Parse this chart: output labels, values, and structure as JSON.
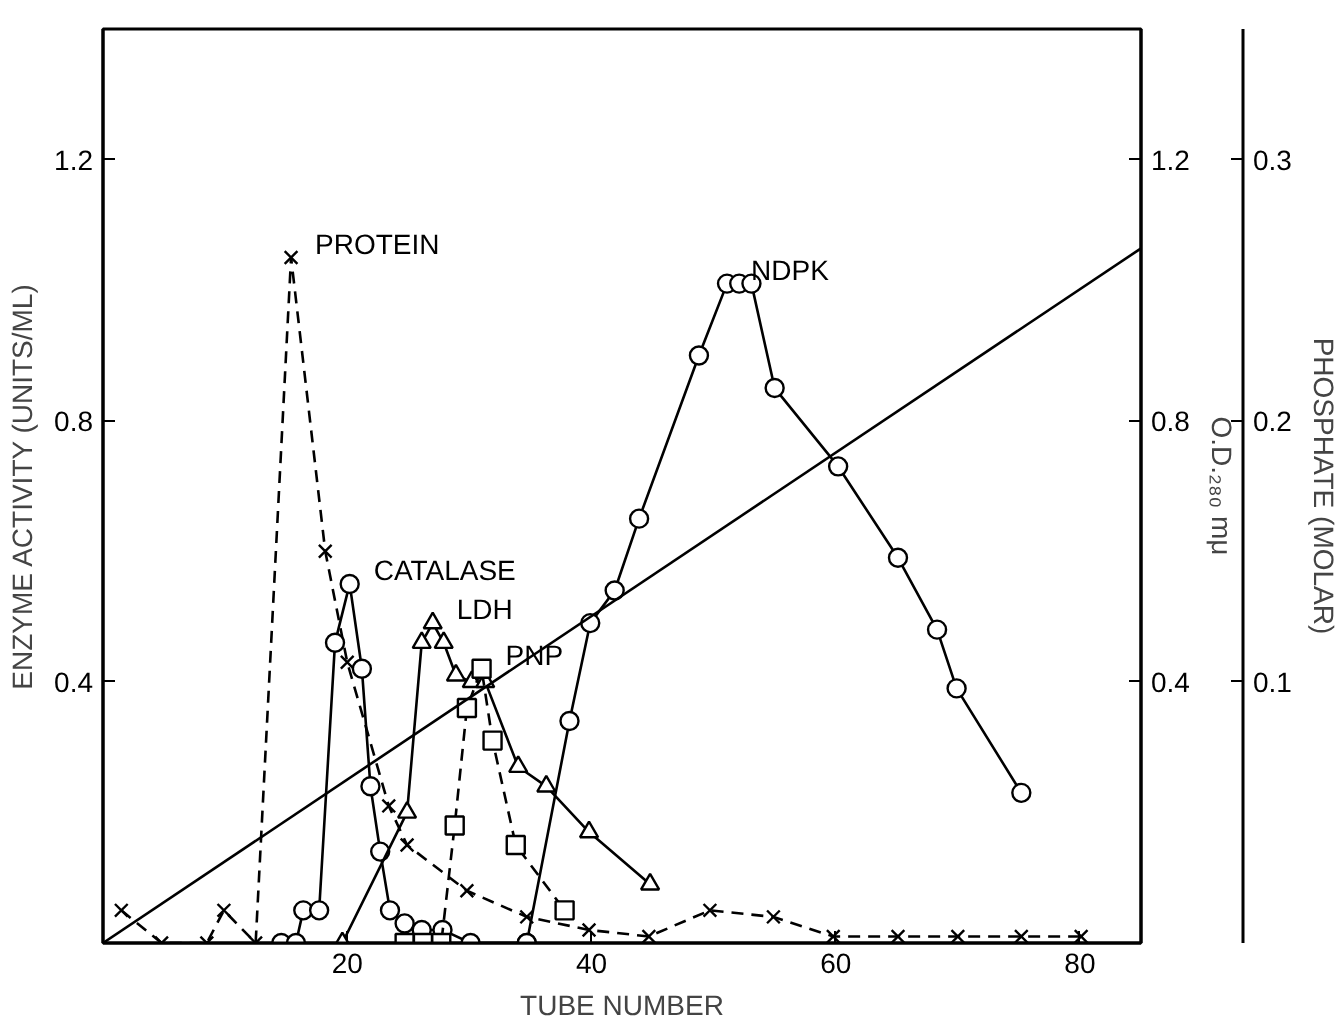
{
  "chart_data": {
    "type": "line",
    "xlabel": "TUBE NUMBER",
    "ylabel": "ENZYME ACTIVITY (UNITS/ML)",
    "y2label": "O.D.₂₈₀ mμ",
    "y3label": "PHOSPHATE (MOLAR)",
    "xlim": [
      0,
      85
    ],
    "xticks": [
      20,
      40,
      60,
      80
    ],
    "ylim": [
      0,
      1.4
    ],
    "yticks": [
      0.4,
      0.8,
      1.2
    ],
    "y2lim": [
      0,
      1.4
    ],
    "y2ticks": [
      0.4,
      0.8,
      1.2
    ],
    "y3lim": [
      0,
      0.35
    ],
    "y3ticks": [
      0.1,
      0.2,
      0.3
    ],
    "series": [
      {
        "name": "PROTEIN",
        "color": "#000000",
        "axis": "y2",
        "marker": "cross",
        "line_style": "dashed",
        "x": [
          1.5,
          4.8,
          8.5,
          9.9,
          12.5,
          15.4,
          18.2,
          20,
          23.4,
          24.9,
          29.8,
          34.7,
          39.8,
          44.7,
          49.7,
          54.9,
          59.8,
          65.1,
          70,
          75.2,
          80.1
        ],
        "values": [
          0.05,
          0,
          0,
          0.05,
          0,
          1.05,
          0.6,
          0.43,
          0.21,
          0.15,
          0.08,
          0.04,
          0.02,
          0.01,
          0.05,
          0.04,
          0.01,
          0.01,
          0.01,
          0.01,
          0.01
        ]
      },
      {
        "name": "CATALASE",
        "color": "#000000",
        "marker": "circle",
        "line_style": "solid",
        "x": [
          14.6,
          15.8,
          16.4,
          17.7,
          19.0,
          20.2,
          21.2,
          21.9,
          22.7,
          23.5,
          24.7,
          26.1,
          27.8,
          30.1,
          34.7
        ],
        "values": [
          0,
          0,
          0.05,
          0.05,
          0.46,
          0.55,
          0.42,
          0.24,
          0.14,
          0.05,
          0.03,
          0.02,
          0.02,
          0,
          0
        ]
      },
      {
        "name": "LDH",
        "color": "#000000",
        "marker": "triangle",
        "line_style": "solid",
        "x": [
          19.6,
          24.9,
          26.1,
          27.0,
          27.9,
          28.9,
          30.2,
          31.3,
          34.0,
          36.3,
          39.8,
          44.8
        ],
        "values": [
          0,
          0.2,
          0.46,
          0.49,
          0.46,
          0.41,
          0.4,
          0.4,
          0.27,
          0.24,
          0.17,
          0.09
        ]
      },
      {
        "name": "PNP",
        "color": "#000000",
        "marker": "square",
        "line_style": "dashed",
        "x": [
          24.7,
          26.2,
          27.7,
          28.8,
          29.8,
          31.0,
          31.9,
          33.8,
          37.8
        ],
        "values": [
          0,
          0,
          0,
          0.18,
          0.36,
          0.42,
          0.31,
          0.15,
          0.05
        ]
      },
      {
        "name": "NDPK",
        "color": "#000000",
        "marker": "circle",
        "line_style": "solid",
        "x": [
          34.7,
          38.2,
          39.9,
          41.9,
          43.9,
          48.8,
          51.1,
          52.1,
          53.1,
          55.0,
          60.2,
          65.1,
          68.3,
          69.9,
          75.2
        ],
        "values": [
          0,
          0.34,
          0.49,
          0.54,
          0.65,
          0.9,
          1.01,
          1.01,
          1.01,
          0.85,
          0.73,
          0.59,
          0.48,
          0.39,
          0.23
        ]
      },
      {
        "color": "#000000",
        "axis": "y3",
        "marker": "none",
        "line_style": "solid",
        "x": [
          0,
          85
        ],
        "values": [
          0,
          0.266
        ]
      }
    ]
  }
}
